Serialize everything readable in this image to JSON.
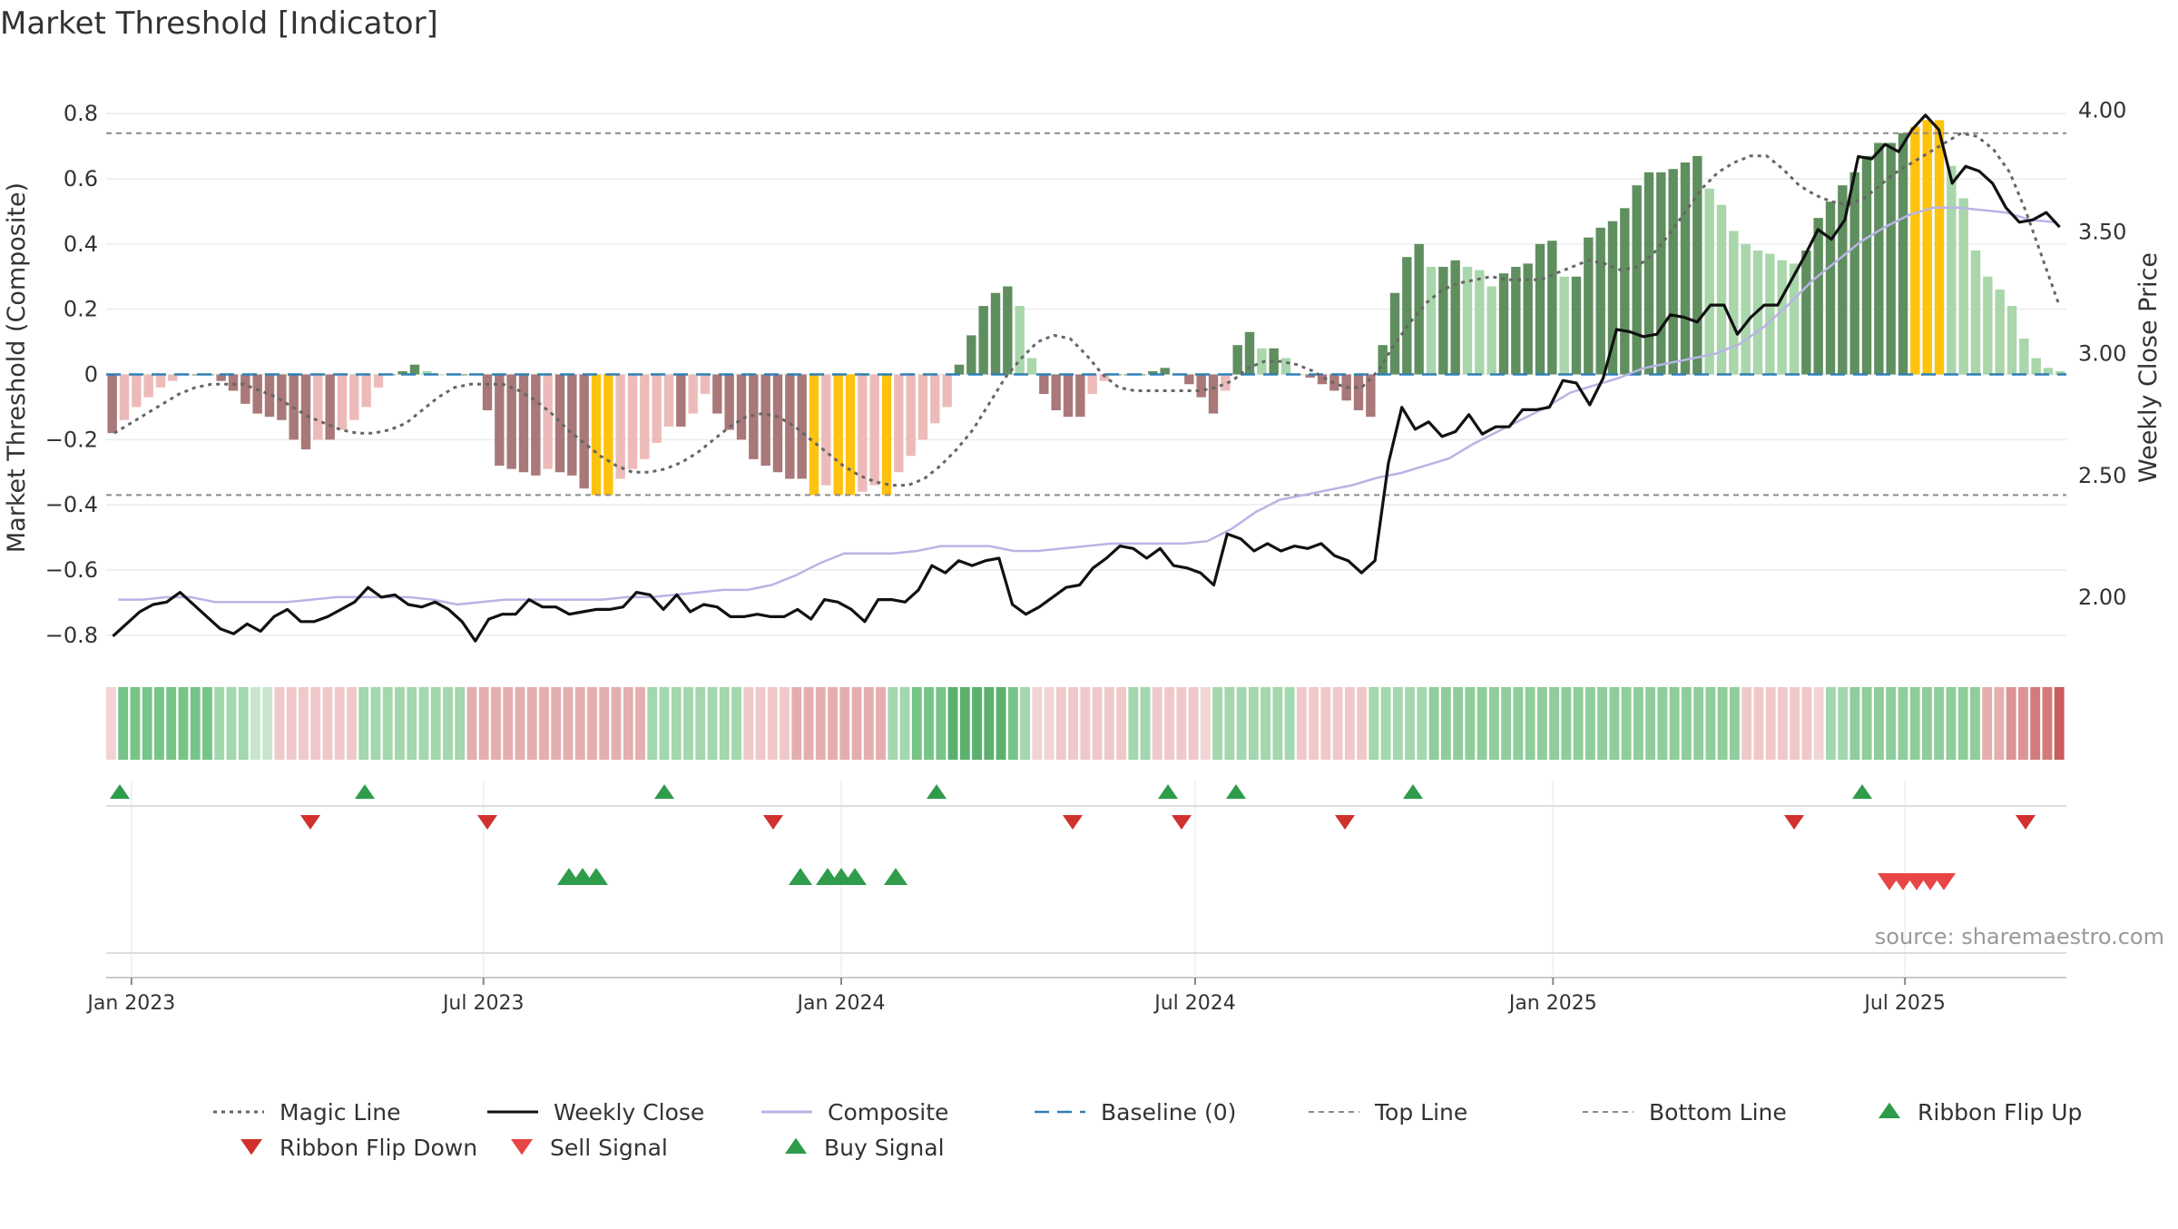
{
  "chart_data": {
    "type": "bar",
    "title": "Market Threshold [Indicator]",
    "ylabel": "Market Threshold (Composite)",
    "y2label": "Weekly Close Price",
    "source": "source: sharemaestro.com",
    "ylim": [
      -0.87,
      0.87
    ],
    "y2lim": [
      1.75,
      4.08
    ],
    "yticks": [
      0.8,
      0.6,
      0.4,
      0.2,
      0,
      -0.2,
      -0.4,
      -0.6,
      -0.8
    ],
    "ytick_labels": [
      "0.8",
      "0.6",
      "0.4",
      "0.2",
      "0",
      "−0.2",
      "−0.4",
      "−0.6",
      "−0.8"
    ],
    "y2ticks": [
      4.0,
      3.5,
      3.0,
      2.5,
      2.0
    ],
    "y2tick_labels": [
      "4.00",
      "3.50",
      "3.00",
      "2.50",
      "2.00"
    ],
    "x_start": "2022-12-19",
    "x_end": "2025-09-22",
    "xticks": [
      "2023-01-01",
      "2023-07-01",
      "2024-01-01",
      "2024-07-01",
      "2025-01-01",
      "2025-07-01"
    ],
    "xtick_labels": [
      "Jan 2023",
      "Jul 2023",
      "Jan 2024",
      "Jul 2024",
      "Jan 2025",
      "Jul 2025"
    ],
    "top_line": 0.74,
    "bottom_line": -0.37,
    "baseline": 0,
    "grid": true,
    "legend_position": "bottom",
    "composite": [
      -0.18,
      -0.14,
      -0.1,
      -0.07,
      -0.04,
      -0.02,
      0.0,
      0.0,
      0.0,
      -0.02,
      -0.05,
      -0.09,
      -0.12,
      -0.13,
      -0.14,
      -0.2,
      -0.23,
      -0.2,
      -0.2,
      -0.17,
      -0.14,
      -0.1,
      -0.04,
      0.0,
      0.01,
      0.03,
      0.01,
      0.0,
      0.0,
      0.0,
      0.0,
      -0.11,
      -0.28,
      -0.29,
      -0.3,
      -0.31,
      -0.29,
      -0.3,
      -0.31,
      -0.35,
      -0.37,
      -0.37,
      -0.32,
      -0.29,
      -0.26,
      -0.21,
      -0.16,
      -0.16,
      -0.12,
      -0.06,
      -0.12,
      -0.17,
      -0.2,
      -0.26,
      -0.28,
      -0.3,
      -0.32,
      -0.32,
      -0.37,
      -0.34,
      -0.37,
      -0.37,
      -0.36,
      -0.34,
      -0.37,
      -0.3,
      -0.25,
      -0.2,
      -0.15,
      -0.1,
      0.03,
      0.12,
      0.21,
      0.25,
      0.27,
      0.21,
      0.05,
      -0.06,
      -0.11,
      -0.13,
      -0.13,
      -0.06,
      -0.02,
      0.0,
      0.0,
      0.0,
      0.01,
      0.02,
      0.0,
      -0.03,
      -0.07,
      -0.12,
      -0.05,
      0.09,
      0.13,
      0.08,
      0.08,
      0.05,
      0.0,
      -0.01,
      -0.03,
      -0.05,
      -0.08,
      -0.11,
      -0.13,
      0.09,
      0.25,
      0.36,
      0.4,
      0.33,
      0.33,
      0.35,
      0.33,
      0.32,
      0.27,
      0.31,
      0.33,
      0.34,
      0.4,
      0.41,
      0.3,
      0.3,
      0.42,
      0.45,
      0.47,
      0.51,
      0.58,
      0.62,
      0.62,
      0.63,
      0.65,
      0.67,
      0.57,
      0.52,
      0.44,
      0.4,
      0.38,
      0.37,
      0.35,
      0.34,
      0.38,
      0.48,
      0.53,
      0.58,
      0.62,
      0.67,
      0.71,
      0.71,
      0.74,
      0.76,
      0.78,
      0.78,
      0.64,
      0.54,
      0.38,
      0.3,
      0.26,
      0.21,
      0.11,
      0.05,
      0.02,
      0.01
    ],
    "weekly_close": [
      1.84,
      1.89,
      1.94,
      1.97,
      1.98,
      2.02,
      1.97,
      1.92,
      1.87,
      1.85,
      1.89,
      1.86,
      1.92,
      1.95,
      1.9,
      1.9,
      1.92,
      1.95,
      1.98,
      2.04,
      2.0,
      2.01,
      1.97,
      1.96,
      1.98,
      1.95,
      1.9,
      1.82,
      1.91,
      1.93,
      1.93,
      1.99,
      1.96,
      1.96,
      1.93,
      1.94,
      1.95,
      1.95,
      1.96,
      2.02,
      2.01,
      1.95,
      2.01,
      1.94,
      1.97,
      1.96,
      1.92,
      1.92,
      1.93,
      1.92,
      1.92,
      1.95,
      1.91,
      1.99,
      1.98,
      1.95,
      1.9,
      1.99,
      1.99,
      1.98,
      2.03,
      2.13,
      2.1,
      2.15,
      2.13,
      2.15,
      2.16,
      1.97,
      1.93,
      1.96,
      2.0,
      2.04,
      2.05,
      2.12,
      2.16,
      2.21,
      2.2,
      2.16,
      2.2,
      2.13,
      2.12,
      2.1,
      2.05,
      2.26,
      2.24,
      2.19,
      2.22,
      2.19,
      2.21,
      2.2,
      2.22,
      2.17,
      2.15,
      2.1,
      2.15,
      2.55,
      2.78,
      2.69,
      2.72,
      2.66,
      2.68,
      2.75,
      2.67,
      2.7,
      2.7,
      2.77,
      2.77,
      2.78,
      2.89,
      2.88,
      2.79,
      2.9,
      3.1,
      3.09,
      3.07,
      3.08,
      3.16,
      3.15,
      3.13,
      3.2,
      3.2,
      3.08,
      3.15,
      3.2,
      3.2,
      3.3,
      3.4,
      3.51,
      3.47,
      3.55,
      3.81,
      3.8,
      3.86,
      3.83,
      3.92,
      3.98,
      3.92,
      3.7,
      3.77,
      3.75,
      3.7,
      3.6,
      3.54,
      3.55,
      3.58,
      3.52
    ],
    "magic_line": [
      -0.18,
      -0.15,
      -0.12,
      -0.09,
      -0.06,
      -0.04,
      -0.03,
      -0.03,
      -0.03,
      -0.05,
      -0.07,
      -0.1,
      -0.13,
      -0.15,
      -0.17,
      -0.18,
      -0.18,
      -0.17,
      -0.15,
      -0.11,
      -0.07,
      -0.04,
      -0.03,
      -0.03,
      -0.03,
      -0.05,
      -0.08,
      -0.12,
      -0.17,
      -0.21,
      -0.25,
      -0.28,
      -0.3,
      -0.3,
      -0.29,
      -0.27,
      -0.24,
      -0.2,
      -0.16,
      -0.13,
      -0.12,
      -0.13,
      -0.16,
      -0.2,
      -0.24,
      -0.28,
      -0.31,
      -0.33,
      -0.34,
      -0.34,
      -0.32,
      -0.28,
      -0.23,
      -0.17,
      -0.09,
      -0.01,
      0.05,
      0.1,
      0.12,
      0.11,
      0.06,
      0.0,
      -0.04,
      -0.05,
      -0.05,
      -0.05,
      -0.05,
      -0.05,
      -0.04,
      -0.02,
      0.02,
      0.04,
      0.04,
      0.03,
      0.01,
      -0.02,
      -0.04,
      -0.04,
      0.01,
      0.09,
      0.16,
      0.22,
      0.26,
      0.28,
      0.29,
      0.3,
      0.29,
      0.29,
      0.29,
      0.31,
      0.33,
      0.35,
      0.34,
      0.32,
      0.33,
      0.37,
      0.43,
      0.5,
      0.57,
      0.62,
      0.65,
      0.67,
      0.67,
      0.63,
      0.58,
      0.55,
      0.53,
      0.52,
      0.54,
      0.58,
      0.62,
      0.65,
      0.68,
      0.71,
      0.74,
      0.73,
      0.69,
      0.62,
      0.5,
      0.36,
      0.22
    ],
    "composite_line": [
      1.99,
      1.99,
      2.0,
      2.0,
      1.98,
      1.98,
      1.98,
      1.98,
      1.99,
      2.0,
      2.0,
      2.0,
      2.0,
      1.99,
      1.97,
      1.98,
      1.99,
      1.99,
      1.99,
      1.99,
      1.99,
      2.0,
      2.0,
      2.01,
      2.02,
      2.03,
      2.03,
      2.05,
      2.09,
      2.14,
      2.18,
      2.18,
      2.18,
      2.19,
      2.21,
      2.21,
      2.21,
      2.19,
      2.19,
      2.2,
      2.21,
      2.22,
      2.22,
      2.22,
      2.22,
      2.23,
      2.28,
      2.35,
      2.4,
      2.42,
      2.44,
      2.46,
      2.49,
      2.51,
      2.54,
      2.57,
      2.63,
      2.68,
      2.73,
      2.78,
      2.84,
      2.87,
      2.9,
      2.94,
      2.96,
      2.98,
      3.0,
      3.04,
      3.11,
      3.2,
      3.3,
      3.38,
      3.46,
      3.52,
      3.57,
      3.6,
      3.6,
      3.59,
      3.58,
      3.55,
      3.54
    ],
    "ribbon_colors": [
      "#f2d4d4",
      "#77c488",
      "#77c488",
      "#77c488",
      "#77c488",
      "#77c488",
      "#77c488",
      "#77c488",
      "#77c488",
      "#a3d7ad",
      "#a3d7ad",
      "#a3d7ad",
      "#c9e5cd",
      "#c9e5cd",
      "#efc9c9",
      "#efc9c9",
      "#efc9c9",
      "#efc9c9",
      "#efc9c9",
      "#efc9c9",
      "#efc9c9",
      "#a3d7ad",
      "#a3d7ad",
      "#a3d7ad",
      "#a3d7ad",
      "#a3d7ad",
      "#a3d7ad",
      "#a3d7ad",
      "#a3d7ad",
      "#a3d7ad",
      "#e5aeae",
      "#e5aeae",
      "#e5aeae",
      "#e5aeae",
      "#e5aeae",
      "#e5aeae",
      "#e5aeae",
      "#e5aeae",
      "#e5aeae",
      "#e5aeae",
      "#e5aeae",
      "#e5aeae",
      "#e5aeae",
      "#e5aeae",
      "#e5aeae",
      "#a3d7ad",
      "#a3d7ad",
      "#a3d7ad",
      "#a3d7ad",
      "#a3d7ad",
      "#a3d7ad",
      "#a3d7ad",
      "#a3d7ad",
      "#efc9c9",
      "#efc9c9",
      "#efc9c9",
      "#efc9c9",
      "#e5aeae",
      "#e5aeae",
      "#e5aeae",
      "#e5aeae",
      "#e5aeae",
      "#e5aeae",
      "#e5aeae",
      "#e5aeae",
      "#a3d7ad",
      "#a3d7ad",
      "#77c488",
      "#77c488",
      "#77c488",
      "#5bb06e",
      "#5bb06e",
      "#5bb06e",
      "#5bb06e",
      "#5bb06e",
      "#77c488",
      "#a3d7ad",
      "#f2d4d4",
      "#f2d4d4",
      "#efc9c9",
      "#efc9c9",
      "#efc9c9",
      "#efc9c9",
      "#efc9c9",
      "#efc9c9",
      "#a3d7ad",
      "#a3d7ad",
      "#efc9c9",
      "#efc9c9",
      "#efc9c9",
      "#efc9c9",
      "#f2d4d4",
      "#a3d7ad",
      "#a3d7ad",
      "#a3d7ad",
      "#a3d7ad",
      "#a3d7ad",
      "#a3d7ad",
      "#a3d7ad",
      "#efc9c9",
      "#efc9c9",
      "#efc9c9",
      "#efc9c9",
      "#efc9c9",
      "#efc9c9",
      "#a3d7ad",
      "#a3d7ad",
      "#a3d7ad",
      "#a3d7ad",
      "#a3d7ad",
      "#8fcd9c",
      "#8fcd9c",
      "#8fcd9c",
      "#8fcd9c",
      "#8fcd9c",
      "#8fcd9c",
      "#8fcd9c",
      "#8fcd9c",
      "#8fcd9c",
      "#8fcd9c",
      "#8fcd9c",
      "#8fcd9c",
      "#8fcd9c",
      "#8fcd9c",
      "#8fcd9c",
      "#8fcd9c",
      "#8fcd9c",
      "#8fcd9c",
      "#8fcd9c",
      "#8fcd9c",
      "#8fcd9c",
      "#8fcd9c",
      "#8fcd9c",
      "#8fcd9c",
      "#8fcd9c",
      "#8fcd9c",
      "#efc9c9",
      "#efc9c9",
      "#efc9c9",
      "#efc9c9",
      "#efc9c9",
      "#efc9c9",
      "#f2d4d4",
      "#a3d7ad",
      "#a3d7ad",
      "#8fcd9c",
      "#8fcd9c",
      "#8fcd9c",
      "#8fcd9c",
      "#8fcd9c",
      "#8fcd9c",
      "#8fcd9c",
      "#8fcd9c",
      "#8fcd9c",
      "#8fcd9c",
      "#8fcd9c",
      "#e5aeae",
      "#e5aeae",
      "#dc9393",
      "#dc9393",
      "#d57a7a",
      "#d57a7a",
      "#ca5c5c"
    ],
    "ribbon_flip_up": [
      "2022-12-26",
      "2023-05-01",
      "2023-10-02",
      "2024-02-19",
      "2024-06-17",
      "2024-07-22",
      "2024-10-21",
      "2025-06-09"
    ],
    "ribbon_flip_down": [
      "2023-04-03",
      "2023-07-03",
      "2023-11-27",
      "2024-04-29",
      "2024-06-24",
      "2024-09-16",
      "2025-05-05",
      "2025-09-01"
    ],
    "buy_signal": [
      "2023-08-14",
      "2023-08-21",
      "2023-08-28",
      "2023-12-11",
      "2023-12-25",
      "2024-01-01",
      "2024-01-08",
      "2024-01-29"
    ],
    "sell_signal": [
      "2025-06-23",
      "2025-06-30",
      "2025-07-07",
      "2025-07-14",
      "2025-07-21"
    ],
    "series": [
      {
        "name": "Magic Line",
        "color": "#666666",
        "style": "dotted"
      },
      {
        "name": "Weekly Close",
        "color": "#111111",
        "style": "solid"
      },
      {
        "name": "Composite",
        "color": "#b8b4e6",
        "style": "solid"
      },
      {
        "name": "Baseline (0)",
        "color": "#2f7fb5",
        "style": "dashed"
      },
      {
        "name": "Top Line",
        "color": "#8a8a8a",
        "style": "dashed-thin"
      },
      {
        "name": "Bottom Line",
        "color": "#8a8a8a",
        "style": "dashed-thin"
      },
      {
        "name": "Ribbon Flip Up",
        "color": "#2e9c4a",
        "marker": "triangle-up"
      },
      {
        "name": "Ribbon Flip Down",
        "color": "#d0312d",
        "marker": "triangle-down"
      },
      {
        "name": "Sell Signal",
        "color": "#e84545",
        "marker": "triangle-down"
      },
      {
        "name": "Buy Signal",
        "color": "#2e9c4a",
        "marker": "triangle-up"
      }
    ],
    "colors": {
      "bar_pos_strong": "#5f8f5f",
      "bar_pos_weak": "#a9d6aa",
      "bar_neg_strong": "#a97878",
      "bar_neg_weak": "#ecbbb9",
      "bar_extreme": "#ffc20e"
    }
  }
}
